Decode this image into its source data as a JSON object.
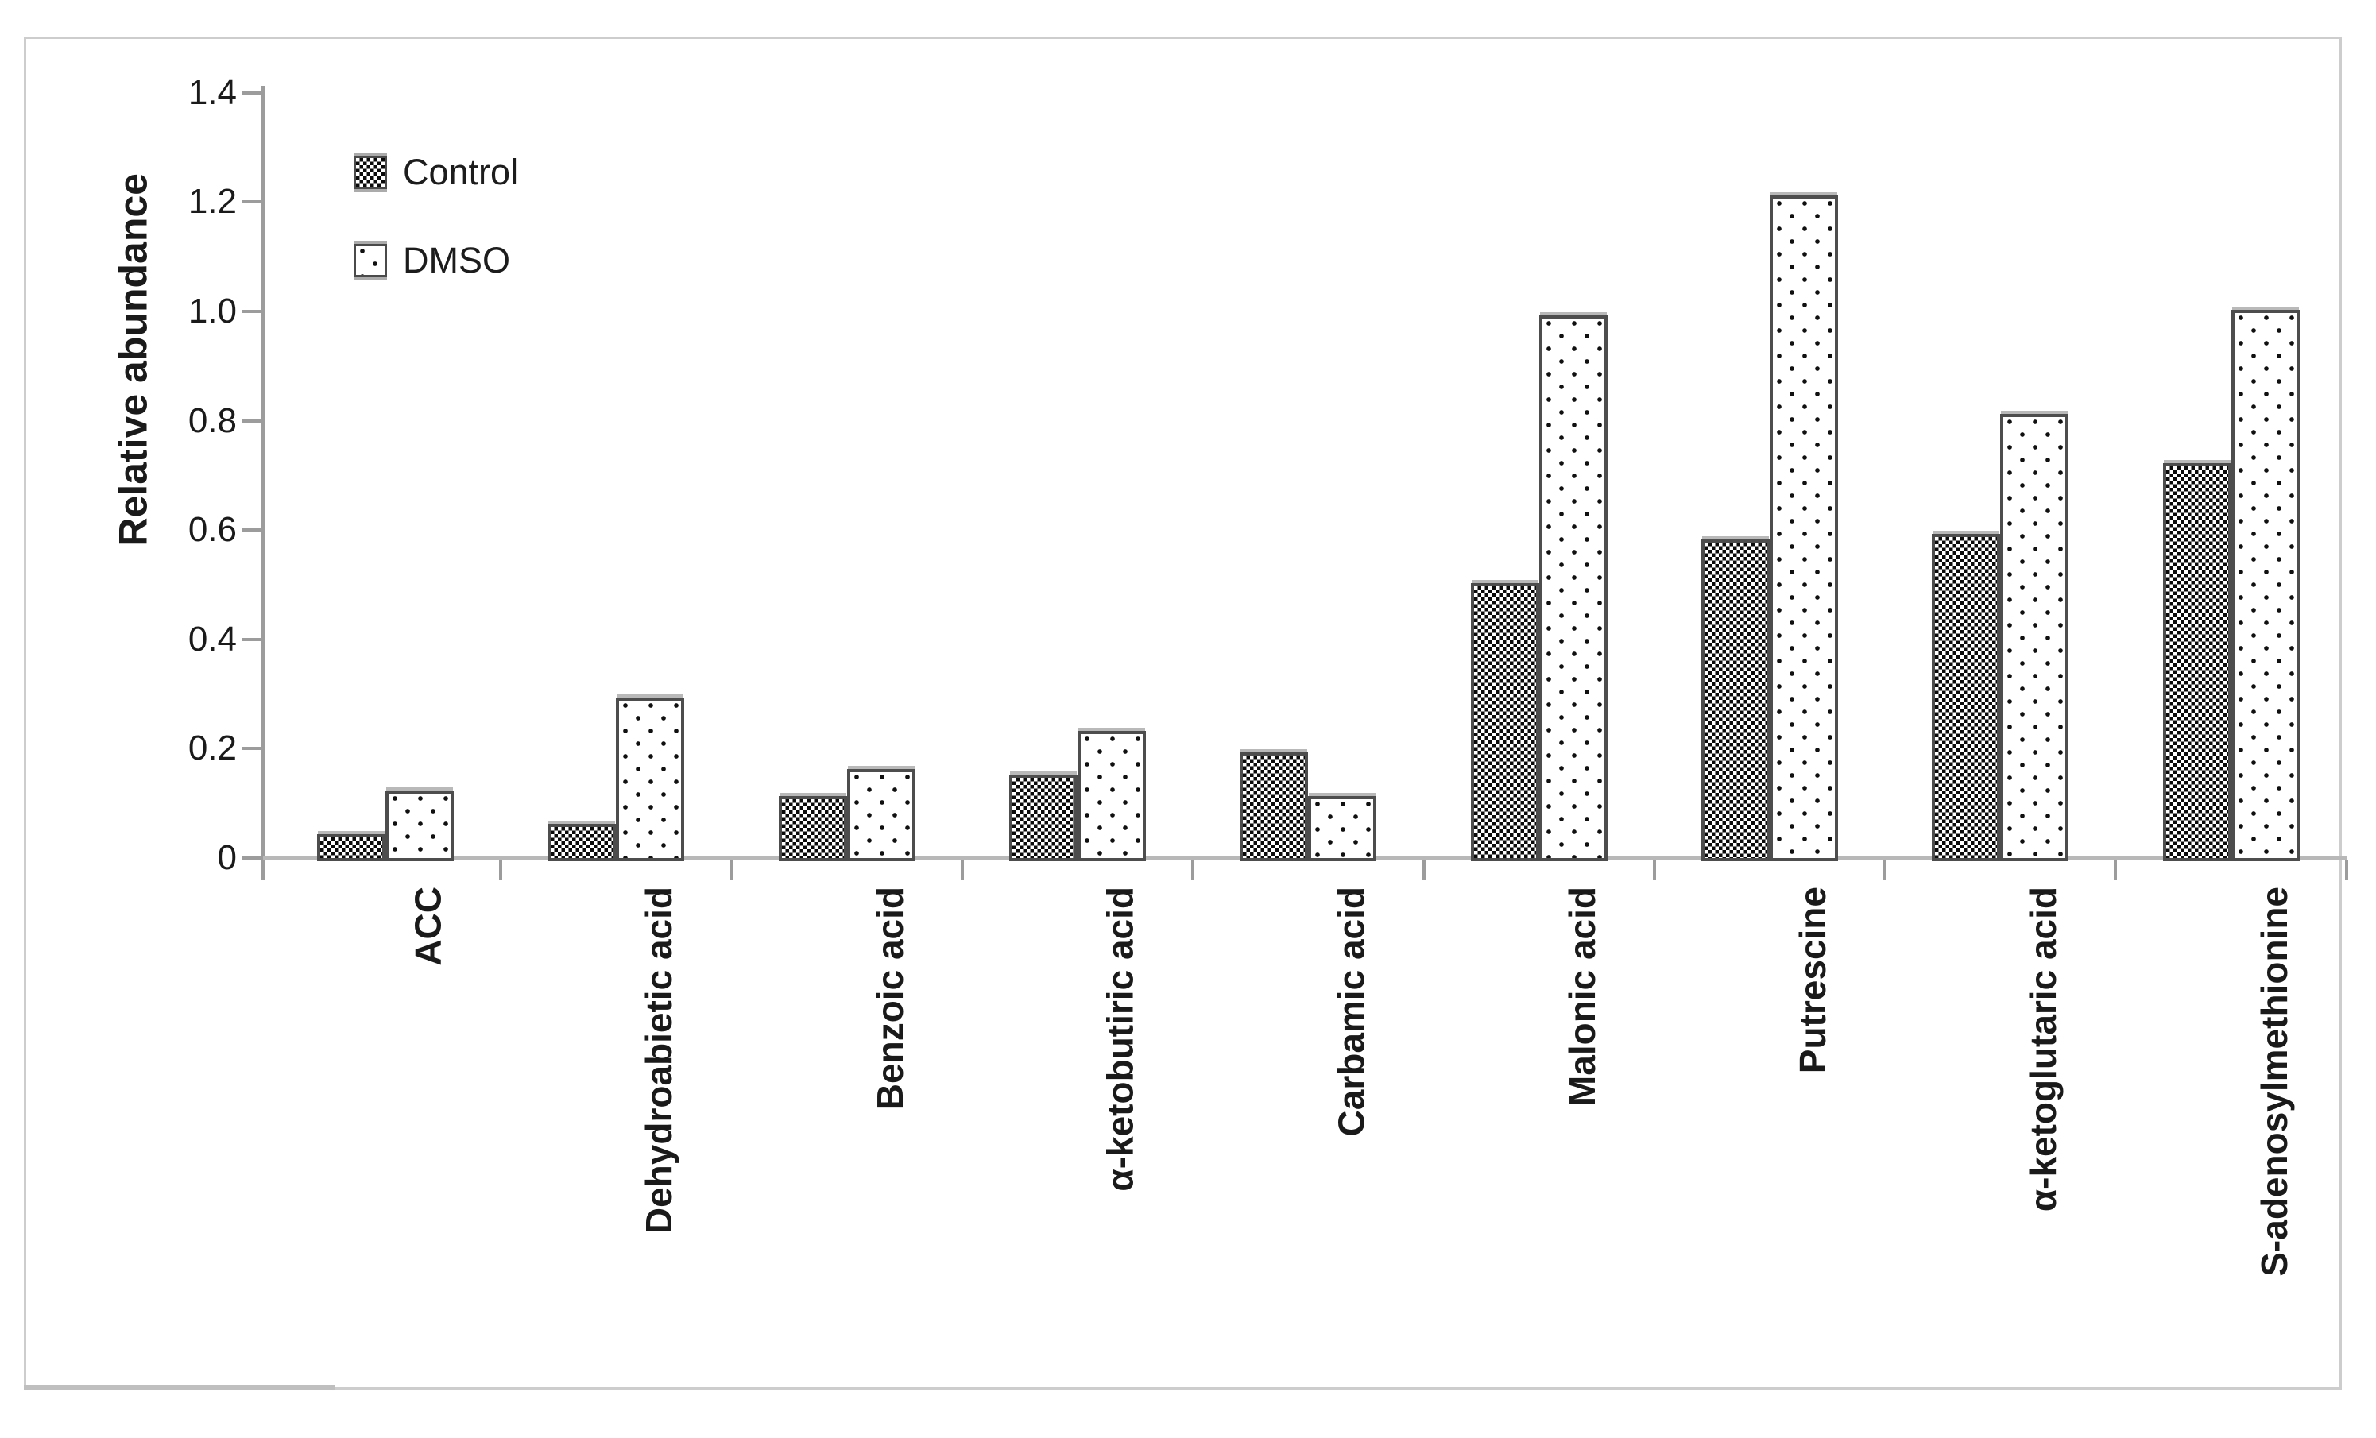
{
  "figure": {
    "background": "#ffffff",
    "border_color": "#cdcdcd"
  },
  "legend": {
    "position": "top-left-inside",
    "items": [
      {
        "label": "Control",
        "pattern": "checkerboard",
        "swatch_icon": "checkerboard-swatch-icon"
      },
      {
        "label": "DMSO",
        "pattern": "dots",
        "swatch_icon": "dotted-swatch-icon"
      }
    ]
  },
  "chart_data": {
    "type": "bar",
    "title": "",
    "xlabel": "",
    "ylabel": "Relative abundance",
    "ylim": [
      0,
      1.4
    ],
    "ytick_values": [
      0,
      0.2,
      0.4,
      0.6,
      0.8,
      1.0,
      1.2,
      1.4
    ],
    "ytick_labels": [
      "0",
      "0.2",
      "0.4",
      "0.6",
      "0.8",
      "1.0",
      "1.2",
      "1.4"
    ],
    "grid": false,
    "legend_position": "top-left-inside",
    "categories": [
      "ACC",
      "Dehydroabietic acid",
      "Benzoic acid",
      "α-ketobutiric acid",
      "Carbamic acid",
      "Malonic acid",
      "Putrescine",
      "α-ketoglutaric acid",
      "S-adenosylmethionine"
    ],
    "series": [
      {
        "name": "Control",
        "pattern": "checkerboard",
        "values": [
          0.04,
          0.06,
          0.11,
          0.15,
          0.19,
          0.5,
          0.58,
          0.59,
          0.72
        ]
      },
      {
        "name": "DMSO",
        "pattern": "dots",
        "values": [
          0.12,
          0.29,
          0.16,
          0.23,
          0.11,
          0.99,
          1.21,
          0.81,
          1.0
        ]
      }
    ],
    "colors": {
      "bar_outline": "#4d4d4d",
      "bar_fill": "#ffffff",
      "pattern_ink": "#0a0a0a",
      "axis": "#9c9c9c",
      "baseline": "#b8b8b8",
      "text": "#1a1a1a"
    }
  }
}
